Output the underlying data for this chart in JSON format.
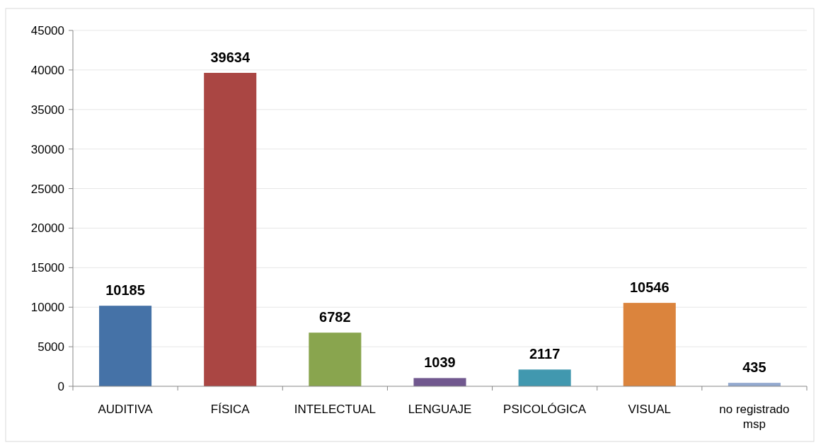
{
  "chart_data": {
    "type": "bar",
    "categories": [
      "AUDITIVA",
      "FÍSICA",
      "INTELECTUAL",
      "LENGUAJE",
      "PSICOLÓGICA",
      "VISUAL",
      "no registrado msp"
    ],
    "values": [
      10185,
      39634,
      6782,
      1039,
      2117,
      10546,
      435
    ],
    "colors": [
      "#4572a7",
      "#aa4643",
      "#89a54e",
      "#71588f",
      "#4198af",
      "#db843d",
      "#93a9cf"
    ],
    "ylim": [
      0,
      45000
    ],
    "yticks": [
      0,
      5000,
      10000,
      15000,
      20000,
      25000,
      30000,
      35000,
      40000,
      45000
    ],
    "grid": "y",
    "data_labels": true
  }
}
